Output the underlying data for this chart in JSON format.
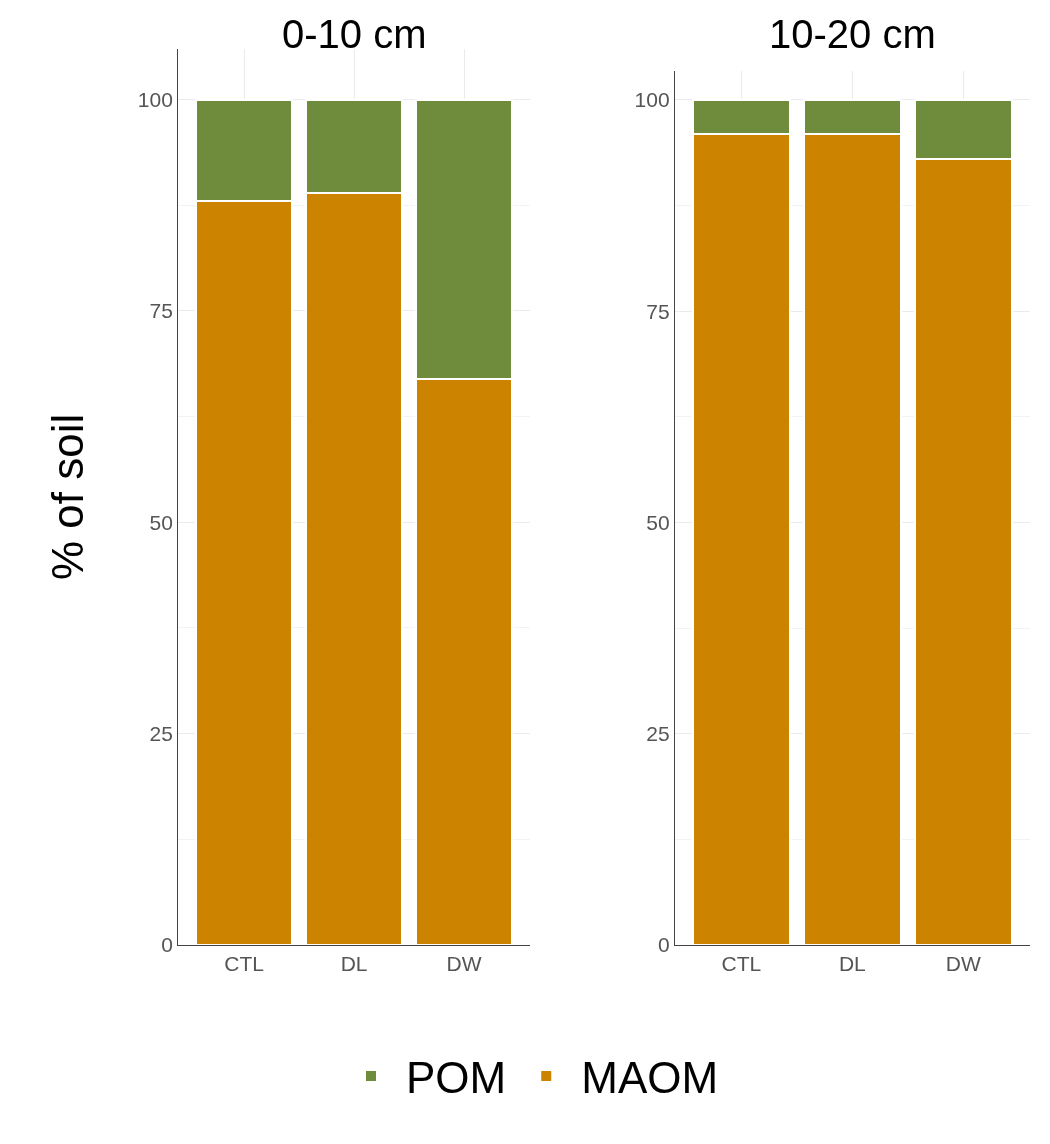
{
  "chart_data": [
    {
      "type": "bar",
      "title": "0-10 cm",
      "ylabel": "% of soil",
      "categories": [
        "CTL",
        "DL",
        "DW"
      ],
      "stacked": true,
      "ylim": [
        0,
        106
      ],
      "yticks": [
        0,
        25,
        50,
        75,
        100
      ],
      "grid": true,
      "legend": "bottom",
      "series": [
        {
          "name": "MAOM",
          "color": "#cc8400",
          "values": [
            88,
            89,
            67
          ]
        },
        {
          "name": "POM",
          "color": "#6f8c3c",
          "values": [
            12,
            11,
            33
          ]
        }
      ]
    },
    {
      "type": "bar",
      "title": "10-20 cm",
      "categories": [
        "CTL",
        "DL",
        "DW"
      ],
      "stacked": true,
      "ylim": [
        0,
        103.4
      ],
      "yticks": [
        0,
        25,
        50,
        75,
        100
      ],
      "grid": true,
      "series": [
        {
          "color": "#cc8400",
          "values": [
            96,
            96,
            93
          ]
        },
        {
          "color": "#6f8c3c",
          "values": [
            4,
            4,
            7
          ]
        }
      ]
    }
  ]
}
